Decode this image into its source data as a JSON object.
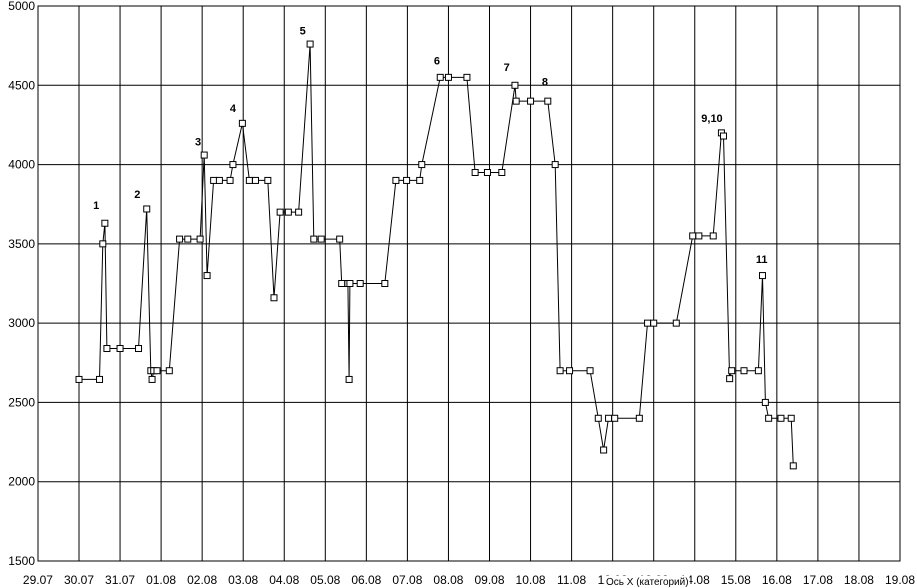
{
  "chart_data": {
    "type": "line",
    "title": "",
    "xlabel": "Ось X (категорий)",
    "ylabel": "",
    "ylim": [
      1500,
      5000
    ],
    "yticks": [
      1500,
      2000,
      2500,
      3000,
      3500,
      4000,
      4500,
      5000
    ],
    "xlim": [
      -1,
      20
    ],
    "xticks": [
      "29.07",
      "30.07",
      "31.07",
      "01.08",
      "02.08",
      "03.08",
      "04.08",
      "05.08",
      "06.08",
      "07.08",
      "08.08",
      "09.08",
      "10.08",
      "11.08",
      "12.08",
      "13.08",
      "14.08",
      "15.08",
      "16.08",
      "17.08",
      "18.08",
      "19.08"
    ],
    "grid": true,
    "series": [
      {
        "values": [
          [
            0.0,
            2645
          ],
          [
            0.5,
            2645
          ],
          [
            0.58,
            3500
          ],
          [
            0.63,
            3630
          ],
          [
            0.68,
            2840
          ],
          [
            1.0,
            2840
          ],
          [
            1.45,
            2840
          ],
          [
            1.65,
            3720
          ],
          [
            1.75,
            2700
          ],
          [
            1.78,
            2645
          ],
          [
            1.82,
            2700
          ],
          [
            1.9,
            2700
          ],
          [
            2.2,
            2700
          ],
          [
            2.45,
            3530
          ],
          [
            2.65,
            3530
          ],
          [
            2.95,
            3530
          ],
          [
            3.05,
            4060
          ],
          [
            3.12,
            3300
          ],
          [
            3.28,
            3900
          ],
          [
            3.42,
            3900
          ],
          [
            3.68,
            3900
          ],
          [
            3.75,
            4000
          ],
          [
            3.98,
            4260
          ],
          [
            4.15,
            3900
          ],
          [
            4.3,
            3900
          ],
          [
            4.6,
            3900
          ],
          [
            4.75,
            3160
          ],
          [
            4.9,
            3700
          ],
          [
            5.1,
            3700
          ],
          [
            5.35,
            3700
          ],
          [
            5.63,
            4760
          ],
          [
            5.72,
            3530
          ],
          [
            5.9,
            3530
          ],
          [
            6.35,
            3530
          ],
          [
            6.4,
            3250
          ],
          [
            6.55,
            3250
          ],
          [
            6.58,
            2645
          ],
          [
            6.6,
            3250
          ],
          [
            6.85,
            3250
          ],
          [
            7.45,
            3250
          ],
          [
            7.72,
            3900
          ],
          [
            7.98,
            3900
          ],
          [
            8.3,
            3900
          ],
          [
            8.35,
            4000
          ],
          [
            8.8,
            4550
          ],
          [
            9.0,
            4550
          ],
          [
            9.45,
            4550
          ],
          [
            9.65,
            3950
          ],
          [
            9.95,
            3950
          ],
          [
            10.3,
            3950
          ],
          [
            10.62,
            4500
          ],
          [
            10.65,
            4400
          ],
          [
            11.0,
            4400
          ],
          [
            11.42,
            4400
          ],
          [
            11.6,
            4000
          ],
          [
            11.72,
            2700
          ],
          [
            11.95,
            2700
          ],
          [
            12.45,
            2700
          ],
          [
            12.65,
            2400
          ],
          [
            12.78,
            2200
          ],
          [
            12.9,
            2400
          ],
          [
            13.05,
            2400
          ],
          [
            13.65,
            2400
          ],
          [
            13.85,
            3000
          ],
          [
            14.0,
            3000
          ],
          [
            14.55,
            3000
          ],
          [
            14.95,
            3550
          ],
          [
            15.1,
            3550
          ],
          [
            15.45,
            3550
          ],
          [
            15.65,
            4200
          ],
          [
            15.7,
            4180
          ],
          [
            15.85,
            2650
          ],
          [
            15.9,
            2700
          ],
          [
            16.2,
            2700
          ],
          [
            16.55,
            2700
          ],
          [
            16.65,
            3300
          ],
          [
            16.72,
            2500
          ],
          [
            16.8,
            2400
          ],
          [
            17.1,
            2400
          ],
          [
            17.35,
            2400
          ],
          [
            17.4,
            2100
          ]
        ]
      }
    ],
    "annotations": [
      {
        "text": "1",
        "x": 0.42,
        "y": 3720
      },
      {
        "text": "2",
        "x": 1.42,
        "y": 3790
      },
      {
        "text": "3",
        "x": 2.9,
        "y": 4120
      },
      {
        "text": "4",
        "x": 3.75,
        "y": 4330
      },
      {
        "text": "5",
        "x": 5.45,
        "y": 4820
      },
      {
        "text": "6",
        "x": 8.72,
        "y": 4630
      },
      {
        "text": "7",
        "x": 10.42,
        "y": 4590
      },
      {
        "text": "8",
        "x": 11.35,
        "y": 4500
      },
      {
        "text": "9,10",
        "x": 15.42,
        "y": 4270
      },
      {
        "text": "11",
        "x": 16.63,
        "y": 3380
      }
    ]
  }
}
